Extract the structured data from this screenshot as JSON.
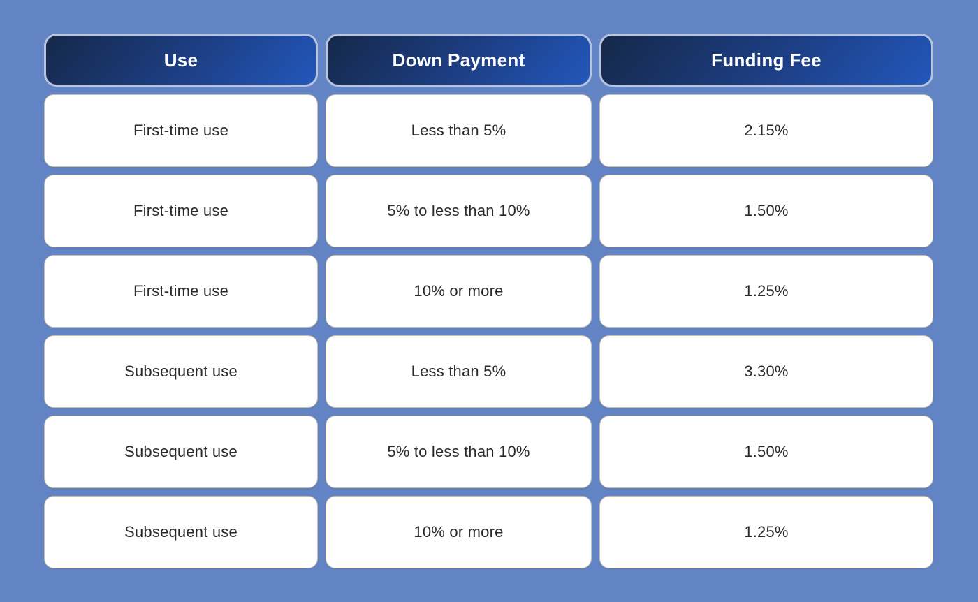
{
  "colors": {
    "background": "#6384c4",
    "header_grad_start": "#152849",
    "header_grad_mid": "#1d3f86",
    "header_grad_end": "#2257bb",
    "header_border": "#b7c4de",
    "cell_border": "#c9c0a8",
    "cell_bg": "#ffffff",
    "cell_text": "#2b2b2b",
    "header_text": "#ffffff"
  },
  "chart_data": {
    "type": "table",
    "columns": [
      "Use",
      "Down Payment",
      "Funding Fee"
    ],
    "rows": [
      [
        "First-time use",
        "Less than 5%",
        "2.15%"
      ],
      [
        "First-time use",
        "5% to less than 10%",
        "1.50%"
      ],
      [
        "First-time use",
        "10% or more",
        "1.25%"
      ],
      [
        "Subsequent use",
        "Less than 5%",
        "3.30%"
      ],
      [
        "Subsequent use",
        "5% to less than 10%",
        "1.50%"
      ],
      [
        "Subsequent use",
        "10% or more",
        "1.25%"
      ]
    ]
  }
}
